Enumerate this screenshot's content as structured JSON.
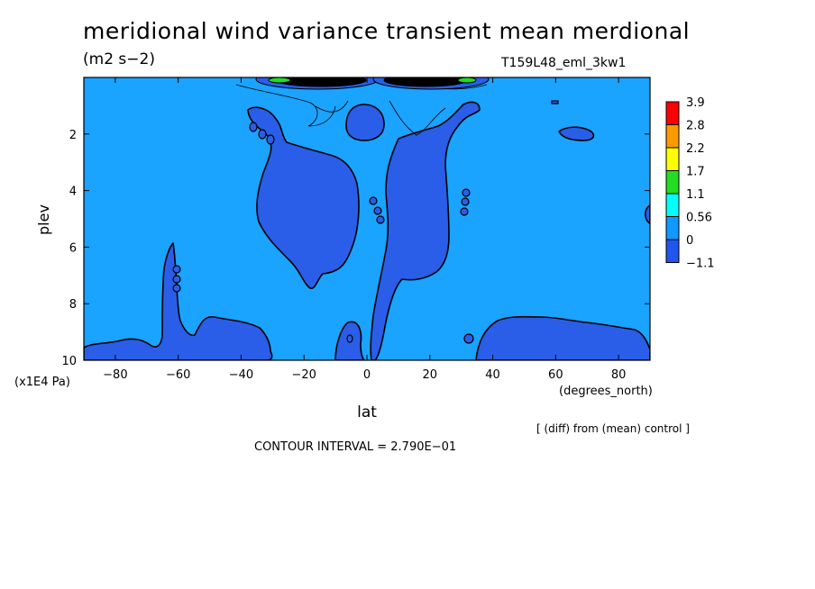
{
  "title": "meridional wind variance transient mean merdional",
  "units": "(m2 s−2)",
  "model": "T159L48_eml_3kw1",
  "diff_note": "[ (diff) from (mean) control ]",
  "contour_interval": "CONTOUR INTERVAL = 2.790E−01",
  "chart_data": {
    "type": "heatmap",
    "title": "meridional wind variance transient mean merdional",
    "subtitle": "(m2 s−2)",
    "xlabel": "lat",
    "x_units": "(degrees_north)",
    "ylabel": "plev",
    "y_units": "(x1E4 Pa)",
    "xlim": [
      -90,
      90
    ],
    "ylim": [
      0,
      10
    ],
    "y_inverted": true,
    "x_ticks": [
      -80,
      -60,
      -40,
      -20,
      0,
      20,
      40,
      60,
      80
    ],
    "x_tick_labels": [
      "−80",
      "−60",
      "−40",
      "−20",
      "0",
      "20",
      "40",
      "60",
      "80"
    ],
    "y_ticks": [
      2,
      4,
      6,
      8,
      10
    ],
    "y_tick_labels": [
      "2",
      "4",
      "6",
      "8",
      "10"
    ],
    "contour_interval": 0.279,
    "colorbar": {
      "levels": [
        "3.9",
        "2.8",
        "2.2",
        "1.7",
        "1.1",
        "0.56",
        "0",
        "−1.1"
      ],
      "colors": [
        "#ff0000",
        "#ff9900",
        "#ffff00",
        "#22dd22",
        "#00ffff",
        "#1199ff",
        "#2255ee"
      ]
    },
    "field_colors": {
      "background": "#1aa3ff",
      "negative": "#2a5ee8",
      "positive_peak": "#000000"
    }
  }
}
